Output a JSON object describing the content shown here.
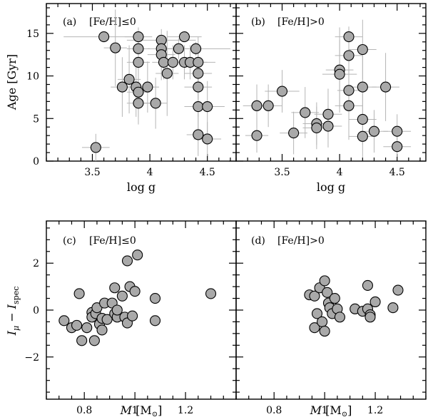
{
  "chart_data": [
    {
      "type": "scatter",
      "panel_label": "(a)",
      "panel_condition": "[Fe/H]≤0",
      "xlabel_var": "log g",
      "ylabel": "Age [Gyr]",
      "xlim": [
        3.1,
        4.75
      ],
      "ylim": [
        0,
        18.5
      ],
      "x_ticks": [
        "3.5",
        "4",
        "4.5"
      ],
      "y_ticks": [
        "0",
        "5",
        "10",
        "15"
      ],
      "points": [
        {
          "x": 3.53,
          "y": 1.6,
          "xerr": 0.12,
          "yerr": 1.6
        },
        {
          "x": 3.6,
          "y": 14.6,
          "xerr": 0.35,
          "yerr": 0.4
        },
        {
          "x": 3.7,
          "y": 13.3,
          "xerr": 0.1,
          "yerr": 4.5
        },
        {
          "x": 3.76,
          "y": 8.7,
          "xerr": 0.1,
          "yerr": 3.5
        },
        {
          "x": 3.82,
          "y": 9.6,
          "xerr": 0.1,
          "yerr": 4.0
        },
        {
          "x": 3.88,
          "y": 8.7,
          "xerr": 0.1,
          "yerr": 3.5
        },
        {
          "x": 3.9,
          "y": 14.6,
          "xerr": 0.12,
          "yerr": 0.5
        },
        {
          "x": 3.9,
          "y": 13.2,
          "xerr": 0.1,
          "yerr": 2.5
        },
        {
          "x": 3.9,
          "y": 11.6,
          "xerr": 0.1,
          "yerr": 3.0
        },
        {
          "x": 3.9,
          "y": 8.1,
          "xerr": 0.1,
          "yerr": 3.0
        },
        {
          "x": 3.9,
          "y": 6.8,
          "xerr": 0.1,
          "yerr": 2.5
        },
        {
          "x": 3.98,
          "y": 8.7,
          "xerr": 0.1,
          "yerr": 3.0
        },
        {
          "x": 4.05,
          "y": 6.8,
          "xerr": 0.1,
          "yerr": 3.0
        },
        {
          "x": 4.1,
          "y": 14.2,
          "xerr": 0.3,
          "yerr": 0.5
        },
        {
          "x": 4.1,
          "y": 13.2,
          "xerr": 0.12,
          "yerr": 1.5
        },
        {
          "x": 4.1,
          "y": 12.5,
          "xerr": 0.12,
          "yerr": 3.0
        },
        {
          "x": 4.12,
          "y": 11.6,
          "xerr": 0.1,
          "yerr": 2.0
        },
        {
          "x": 4.15,
          "y": 10.3,
          "xerr": 0.1,
          "yerr": 5.0
        },
        {
          "x": 4.2,
          "y": 11.6,
          "xerr": 0.12,
          "yerr": 2.0
        },
        {
          "x": 4.25,
          "y": 13.2,
          "xerr": 0.12,
          "yerr": 1.2
        },
        {
          "x": 4.3,
          "y": 14.6,
          "xerr": 0.15,
          "yerr": 0.4
        },
        {
          "x": 4.3,
          "y": 11.6,
          "xerr": 0.12,
          "yerr": 2.0
        },
        {
          "x": 4.35,
          "y": 11.6,
          "xerr": 0.15,
          "yerr": 2.0
        },
        {
          "x": 4.4,
          "y": 13.2,
          "xerr": 0.3,
          "yerr": 0.8
        },
        {
          "x": 4.42,
          "y": 11.6,
          "xerr": 0.15,
          "yerr": 3.0
        },
        {
          "x": 4.42,
          "y": 10.3,
          "xerr": 0.12,
          "yerr": 3.0
        },
        {
          "x": 4.42,
          "y": 8.7,
          "xerr": 0.12,
          "yerr": 3.5
        },
        {
          "x": 4.42,
          "y": 6.4,
          "xerr": 0.12,
          "yerr": 3.5
        },
        {
          "x": 4.42,
          "y": 3.1,
          "xerr": 0.1,
          "yerr": 2.5
        },
        {
          "x": 4.5,
          "y": 6.4,
          "xerr": 0.15,
          "yerr": 3.0
        },
        {
          "x": 4.5,
          "y": 2.6,
          "xerr": 0.12,
          "yerr": 2.0
        }
      ]
    },
    {
      "type": "scatter",
      "panel_label": "(b)",
      "panel_condition": "[Fe/H]>0",
      "xlabel_var": "log g",
      "xlim": [
        3.1,
        4.75
      ],
      "ylim": [
        0,
        18.5
      ],
      "x_ticks": [
        "3.5",
        "4",
        "4.5"
      ],
      "points": [
        {
          "x": 3.28,
          "y": 6.5,
          "xerr": 0.12,
          "yerr": 2.5
        },
        {
          "x": 3.28,
          "y": 3.0,
          "xerr": 0.1,
          "yerr": 2.0
        },
        {
          "x": 3.38,
          "y": 6.5,
          "xerr": 0.12,
          "yerr": 2.5
        },
        {
          "x": 3.5,
          "y": 8.2,
          "xerr": 0.15,
          "yerr": 2.5
        },
        {
          "x": 3.6,
          "y": 3.3,
          "xerr": 0.12,
          "yerr": 2.5
        },
        {
          "x": 3.7,
          "y": 5.7,
          "xerr": 0.12,
          "yerr": 3.0
        },
        {
          "x": 3.8,
          "y": 4.4,
          "xerr": 0.12,
          "yerr": 2.5
        },
        {
          "x": 3.8,
          "y": 3.9,
          "xerr": 0.12,
          "yerr": 2.5
        },
        {
          "x": 3.9,
          "y": 5.5,
          "xerr": 0.12,
          "yerr": 3.0
        },
        {
          "x": 3.9,
          "y": 4.1,
          "xerr": 0.12,
          "yerr": 2.5
        },
        {
          "x": 4.0,
          "y": 10.7,
          "xerr": 0.12,
          "yerr": 5.0
        },
        {
          "x": 4.0,
          "y": 10.2,
          "xerr": 0.15,
          "yerr": 4.0
        },
        {
          "x": 4.08,
          "y": 14.6,
          "xerr": 0.12,
          "yerr": 1.2
        },
        {
          "x": 4.08,
          "y": 12.4,
          "xerr": 0.12,
          "yerr": 2.5
        },
        {
          "x": 4.08,
          "y": 8.3,
          "xerr": 0.1,
          "yerr": 4.0
        },
        {
          "x": 4.08,
          "y": 6.5,
          "xerr": 0.12,
          "yerr": 4.0
        },
        {
          "x": 4.2,
          "y": 13.1,
          "xerr": 0.12,
          "yerr": 3.5
        },
        {
          "x": 4.2,
          "y": 8.7,
          "xerr": 0.12,
          "yerr": 4.0
        },
        {
          "x": 4.2,
          "y": 4.9,
          "xerr": 0.12,
          "yerr": 3.0
        },
        {
          "x": 4.2,
          "y": 2.9,
          "xerr": 0.12,
          "yerr": 2.5
        },
        {
          "x": 4.3,
          "y": 3.5,
          "xerr": 0.12,
          "yerr": 2.5
        },
        {
          "x": 4.4,
          "y": 8.7,
          "xerr": 0.12,
          "yerr": 4.0
        },
        {
          "x": 4.5,
          "y": 3.5,
          "xerr": 0.12,
          "yerr": 2.0
        },
        {
          "x": 4.5,
          "y": 1.7,
          "xerr": 0.12,
          "yerr": 1.2
        }
      ]
    },
    {
      "type": "scatter",
      "panel_label": "(c)",
      "panel_condition": "[Fe/H]≤0",
      "xlabel_var": "M",
      "xlabel_unit": "[M",
      "xlabel_unit_close": "]",
      "ylabel_main": "I",
      "ylabel_sub1": "μ",
      "ylabel_minus": " − I",
      "ylabel_sub2": "spec",
      "xlim": [
        0.65,
        1.4
      ],
      "ylim": [
        -3.8,
        3.8
      ],
      "x_ticks": [
        "0.8",
        "1",
        "1.2"
      ],
      "y_ticks": [
        "−2",
        "0",
        "2"
      ],
      "points": [
        {
          "x": 0.72,
          "y": -0.45
        },
        {
          "x": 0.75,
          "y": -0.75
        },
        {
          "x": 0.77,
          "y": -0.65
        },
        {
          "x": 0.78,
          "y": 0.7
        },
        {
          "x": 0.79,
          "y": -1.3
        },
        {
          "x": 0.81,
          "y": -0.75
        },
        {
          "x": 0.83,
          "y": -0.1
        },
        {
          "x": 0.83,
          "y": -0.3
        },
        {
          "x": 0.84,
          "y": -1.3
        },
        {
          "x": 0.845,
          "y": -0.15
        },
        {
          "x": 0.85,
          "y": 0.1
        },
        {
          "x": 0.86,
          "y": -0.6
        },
        {
          "x": 0.87,
          "y": -0.85
        },
        {
          "x": 0.87,
          "y": -0.35
        },
        {
          "x": 0.88,
          "y": 0.3
        },
        {
          "x": 0.89,
          "y": -0.4
        },
        {
          "x": 0.91,
          "y": 0.3
        },
        {
          "x": 0.92,
          "y": 0.95
        },
        {
          "x": 0.92,
          "y": -0.15
        },
        {
          "x": 0.93,
          "y": -0.3
        },
        {
          "x": 0.93,
          "y": 0.0
        },
        {
          "x": 0.95,
          "y": 0.6
        },
        {
          "x": 0.96,
          "y": -0.3
        },
        {
          "x": 0.97,
          "y": 2.1
        },
        {
          "x": 0.97,
          "y": -0.55
        },
        {
          "x": 0.98,
          "y": 1.0
        },
        {
          "x": 0.99,
          "y": -0.25
        },
        {
          "x": 1.0,
          "y": 0.8
        },
        {
          "x": 1.01,
          "y": 2.35
        },
        {
          "x": 1.08,
          "y": 0.5
        },
        {
          "x": 1.08,
          "y": -0.45
        },
        {
          "x": 1.3,
          "y": 0.7
        }
      ]
    },
    {
      "type": "scatter",
      "panel_label": "(d)",
      "panel_condition": "[Fe/H]>0",
      "xlabel_var": "M",
      "xlabel_unit": "[M",
      "xlabel_unit_close": "]",
      "xlim": [
        0.65,
        1.4
      ],
      "ylim": [
        -3.8,
        3.8
      ],
      "x_ticks": [
        "0.8",
        "1",
        "1.2"
      ],
      "points": [
        {
          "x": 0.94,
          "y": 0.65
        },
        {
          "x": 0.96,
          "y": -0.75
        },
        {
          "x": 0.96,
          "y": 0.6
        },
        {
          "x": 0.97,
          "y": -0.15
        },
        {
          "x": 0.98,
          "y": 0.95
        },
        {
          "x": 0.99,
          "y": -0.5
        },
        {
          "x": 1.0,
          "y": 1.25
        },
        {
          "x": 1.0,
          "y": -0.9
        },
        {
          "x": 1.01,
          "y": 0.75
        },
        {
          "x": 1.015,
          "y": 0.3
        },
        {
          "x": 1.02,
          "y": 0.1
        },
        {
          "x": 1.03,
          "y": -0.15
        },
        {
          "x": 1.04,
          "y": 0.5
        },
        {
          "x": 1.05,
          "y": 0.05
        },
        {
          "x": 1.06,
          "y": -0.3
        },
        {
          "x": 1.12,
          "y": 0.05
        },
        {
          "x": 1.15,
          "y": -0.05
        },
        {
          "x": 1.17,
          "y": 1.05
        },
        {
          "x": 1.17,
          "y": 0.05
        },
        {
          "x": 1.18,
          "y": -0.2
        },
        {
          "x": 1.18,
          "y": -0.3
        },
        {
          "x": 1.2,
          "y": 0.35
        },
        {
          "x": 1.27,
          "y": 0.1
        },
        {
          "x": 1.29,
          "y": 0.85
        }
      ]
    }
  ]
}
